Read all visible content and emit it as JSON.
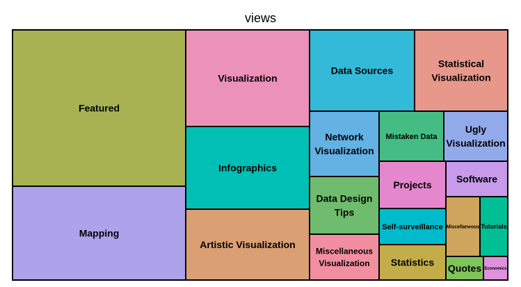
{
  "chart_data": {
    "type": "treemap",
    "title": "views",
    "tiles": [
      {
        "label": "Featured",
        "value": 225,
        "color": "#a8b253"
      },
      {
        "label": "Mapping",
        "value": 135,
        "color": "#aea2ea"
      },
      {
        "label": "Visualization",
        "value": 100,
        "color": "#ec92b9"
      },
      {
        "label": "Infographics",
        "value": 84,
        "color": "#00c0b5"
      },
      {
        "label": "Artistic Visualization",
        "value": 73,
        "color": "#db9f74"
      },
      {
        "label": "Data Sources",
        "value": 59,
        "color": "#32bad8"
      },
      {
        "label": "Statistical Visualization",
        "value": 47,
        "color": "#e8988a"
      },
      {
        "label": "Network Visualization",
        "value": 32,
        "color": "#64b1e4"
      },
      {
        "label": "Mistaken Data",
        "value": 23,
        "color": "#45bc84"
      },
      {
        "label": "Ugly Visualization",
        "value": 23,
        "color": "#92aaea"
      },
      {
        "label": "Projects",
        "value": 20,
        "color": "#e587cc"
      },
      {
        "label": "Software",
        "value": 15,
        "color": "#c79bea"
      },
      {
        "label": "Data Design Tips",
        "value": 28,
        "color": "#6fbc6e"
      },
      {
        "label": "Self-surveillance",
        "value": 17,
        "color": "#00bbcc"
      },
      {
        "label": "Miscellaneous Visualization",
        "value": 22,
        "color": "#f18fa0"
      },
      {
        "label": "Statistics",
        "value": 16,
        "color": "#c3ad4a"
      },
      {
        "label": "Miscellaneous",
        "value": 10,
        "color": "#cfa45c"
      },
      {
        "label": "Tutorials",
        "value": 9,
        "color": "#00bf96"
      },
      {
        "label": "Quotes",
        "value": 5,
        "color": "#7fc45a"
      },
      {
        "label": "Economics",
        "value": 4,
        "color": "#de92dc"
      }
    ]
  }
}
